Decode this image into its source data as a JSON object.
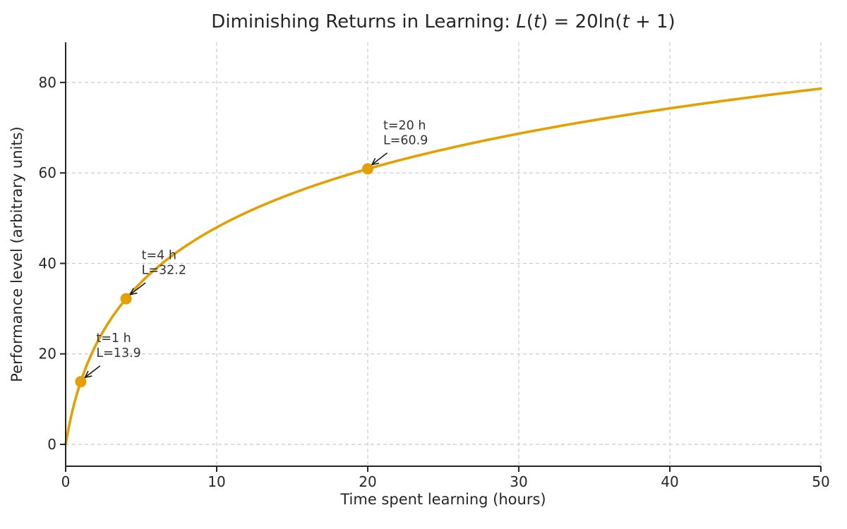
{
  "chart_data": {
    "type": "line",
    "title": "Diminishing Returns in Learning: L(t) = 20ln(t + 1)",
    "title_segments": [
      {
        "text": "Diminishing Returns in Learning: ",
        "italic": false
      },
      {
        "text": "L",
        "italic": true
      },
      {
        "text": "(",
        "italic": false
      },
      {
        "text": "t",
        "italic": true
      },
      {
        "text": ") = 20ln(",
        "italic": false
      },
      {
        "text": "t",
        "italic": true
      },
      {
        "text": " + 1)",
        "italic": false
      }
    ],
    "xlabel": "Time spent learning (hours)",
    "ylabel": "Performance level (arbitrary units)",
    "xlim": [
      0,
      50
    ],
    "ylim": [
      -4.83,
      88.87
    ],
    "xticks": [
      0,
      10,
      20,
      30,
      40,
      50
    ],
    "yticks": [
      0,
      20,
      40,
      60,
      80
    ],
    "grid": true,
    "grid_style": "dashed",
    "legend": "none",
    "series": [
      {
        "name": "L(t) = 20ln(t+1)",
        "formula": "L(t) = coef * ln(t + 1)",
        "coef": 20,
        "color": "#E69F00",
        "x": [
          0,
          1,
          2,
          3,
          4,
          5,
          10,
          15,
          20,
          25,
          30,
          35,
          40,
          45,
          50
        ],
        "y": [
          0,
          13.9,
          22.0,
          27.7,
          32.2,
          35.8,
          48.0,
          55.5,
          60.9,
          65.2,
          68.7,
          71.7,
          74.3,
          76.6,
          78.6
        ]
      }
    ],
    "annotations": [
      {
        "lines": [
          "t=1 h",
          "L=13.9"
        ],
        "t": 1,
        "L": 13.86
      },
      {
        "lines": [
          "t=4 h",
          "L=32.2"
        ],
        "t": 4,
        "L": 32.19
      },
      {
        "lines": [
          "t=20 h",
          "L=60.9"
        ],
        "t": 20,
        "L": 60.9
      }
    ],
    "colors": {
      "curve": "#E69F00",
      "marker": "#E69F00",
      "grid": "#cccccc",
      "axis": "#262626",
      "text": "#262626",
      "annotation_text": "#333333",
      "arrow": "#1a1a1a"
    },
    "background": "#ffffff"
  }
}
